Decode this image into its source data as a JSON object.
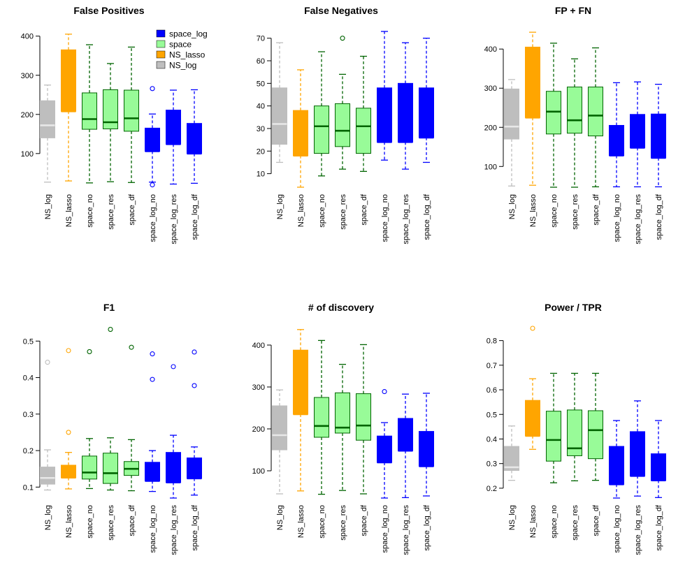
{
  "chart_data": [
    {
      "type": "boxplot",
      "title": "False Positives",
      "categories": [
        "NS_log",
        "NS_lasso",
        "space_no",
        "space_res",
        "space_df",
        "space_log_no",
        "space_log_res",
        "space_log_df"
      ],
      "yticks": [
        100,
        200,
        300,
        400
      ],
      "ylim": [
        14,
        412
      ],
      "boxes": [
        {
          "min": 27,
          "q1": 140,
          "median": 172,
          "q3": 235,
          "max": 275,
          "outliers": []
        },
        {
          "min": 30,
          "q1": 208,
          "median": 208,
          "q3": 365,
          "max": 405,
          "outliers": []
        },
        {
          "min": 25,
          "q1": 162,
          "median": 188,
          "q3": 255,
          "max": 378,
          "outliers": []
        },
        {
          "min": 28,
          "q1": 163,
          "median": 180,
          "q3": 263,
          "max": 330,
          "outliers": []
        },
        {
          "min": 26,
          "q1": 157,
          "median": 190,
          "q3": 262,
          "max": 372,
          "outliers": []
        },
        {
          "min": 27,
          "q1": 106,
          "median": 106,
          "q3": 165,
          "max": 201,
          "outliers": [
            266,
            20
          ]
        },
        {
          "min": 22,
          "q1": 124,
          "median": 124,
          "q3": 211,
          "max": 262,
          "outliers": []
        },
        {
          "min": 24,
          "q1": 100,
          "median": 100,
          "q3": 177,
          "max": 263,
          "outliers": []
        }
      ],
      "legend": {
        "position": "top-right",
        "entries": [
          {
            "label": "space_log",
            "color": "#0000FF"
          },
          {
            "label": "space",
            "color": "#98FB98"
          },
          {
            "label": "NS_lasso",
            "color": "#FFA500"
          },
          {
            "label": "NS_log",
            "color": "#BEBEBE"
          }
        ]
      }
    },
    {
      "type": "boxplot",
      "title": "False Negatives",
      "categories": [
        "NS_log",
        "NS_lasso",
        "space_no",
        "space_res",
        "space_df",
        "space_log_no",
        "space_log_res",
        "space_log_df"
      ],
      "yticks": [
        10,
        20,
        30,
        40,
        50,
        60,
        70
      ],
      "ylim": [
        4,
        73
      ],
      "boxes": [
        {
          "min": 15,
          "q1": 23,
          "median": 32,
          "q3": 48,
          "max": 68,
          "outliers": []
        },
        {
          "min": 4,
          "q1": 18,
          "median": 18,
          "q3": 38,
          "max": 56,
          "outliers": []
        },
        {
          "min": 9,
          "q1": 19,
          "median": 31,
          "q3": 40,
          "max": 64,
          "outliers": []
        },
        {
          "min": 12,
          "q1": 22,
          "median": 29,
          "q3": 41,
          "max": 54,
          "outliers": [
            70
          ]
        },
        {
          "min": 11,
          "q1": 19,
          "median": 31,
          "q3": 39,
          "max": 62,
          "outliers": []
        },
        {
          "min": 16,
          "q1": 24,
          "median": 24,
          "q3": 48,
          "max": 73,
          "outliers": []
        },
        {
          "min": 12,
          "q1": 24,
          "median": 24,
          "q3": 50,
          "max": 68,
          "outliers": []
        },
        {
          "min": 15,
          "q1": 26,
          "median": 26,
          "q3": 48,
          "max": 70,
          "outliers": []
        }
      ]
    },
    {
      "type": "boxplot",
      "title": "FP + FN",
      "categories": [
        "NS_log",
        "NS_lasso",
        "space_no",
        "space_res",
        "space_df",
        "space_log_no",
        "space_log_res",
        "space_log_df"
      ],
      "yticks": [
        100,
        200,
        300,
        400
      ],
      "ylim": [
        47,
        445
      ],
      "boxes": [
        {
          "min": 50,
          "q1": 170,
          "median": 202,
          "q3": 298,
          "max": 322,
          "outliers": []
        },
        {
          "min": 52,
          "q1": 225,
          "median": 225,
          "q3": 405,
          "max": 443,
          "outliers": []
        },
        {
          "min": 47,
          "q1": 183,
          "median": 240,
          "q3": 292,
          "max": 415,
          "outliers": []
        },
        {
          "min": 47,
          "q1": 185,
          "median": 218,
          "q3": 303,
          "max": 375,
          "outliers": []
        },
        {
          "min": 48,
          "q1": 178,
          "median": 230,
          "q3": 303,
          "max": 403,
          "outliers": []
        },
        {
          "min": 48,
          "q1": 128,
          "median": 128,
          "q3": 205,
          "max": 314,
          "outliers": []
        },
        {
          "min": 48,
          "q1": 148,
          "median": 148,
          "q3": 233,
          "max": 316,
          "outliers": []
        },
        {
          "min": 48,
          "q1": 122,
          "median": 122,
          "q3": 234,
          "max": 310,
          "outliers": []
        }
      ]
    },
    {
      "type": "boxplot",
      "title": "F1",
      "categories": [
        "NS_log",
        "NS_lasso",
        "space_no",
        "space_res",
        "space_df",
        "space_log_no",
        "space_log_res",
        "space_log_df"
      ],
      "yticks": [
        0.1,
        0.2,
        0.3,
        0.4,
        0.5
      ],
      "ylim": [
        0.07,
        0.535
      ],
      "boxes": [
        {
          "min": 0.092,
          "q1": 0.108,
          "median": 0.125,
          "q3": 0.155,
          "max": 0.202,
          "outliers": [
            0.442
          ]
        },
        {
          "min": 0.095,
          "q1": 0.126,
          "median": 0.126,
          "q3": 0.16,
          "max": 0.195,
          "outliers": [
            0.474,
            0.25
          ]
        },
        {
          "min": 0.096,
          "q1": 0.122,
          "median": 0.14,
          "q3": 0.185,
          "max": 0.233,
          "outliers": [
            0.471
          ]
        },
        {
          "min": 0.092,
          "q1": 0.11,
          "median": 0.138,
          "q3": 0.193,
          "max": 0.235,
          "outliers": [
            0.532
          ]
        },
        {
          "min": 0.09,
          "q1": 0.132,
          "median": 0.15,
          "q3": 0.17,
          "max": 0.23,
          "outliers": [
            0.483
          ]
        },
        {
          "min": 0.088,
          "q1": 0.117,
          "median": 0.117,
          "q3": 0.168,
          "max": 0.2,
          "outliers": [
            0.465,
            0.395
          ]
        },
        {
          "min": 0.07,
          "q1": 0.113,
          "median": 0.113,
          "q3": 0.195,
          "max": 0.242,
          "outliers": [
            0.43
          ]
        },
        {
          "min": 0.078,
          "q1": 0.124,
          "median": 0.124,
          "q3": 0.18,
          "max": 0.21,
          "outliers": [
            0.47,
            0.378
          ]
        }
      ]
    },
    {
      "type": "boxplot",
      "title": "# of discovery",
      "categories": [
        "NS_log",
        "NS_lasso",
        "space_no",
        "space_res",
        "space_df",
        "space_log_no",
        "space_log_res",
        "space_log_df"
      ],
      "yticks": [
        100,
        200,
        300,
        400
      ],
      "ylim": [
        35,
        440
      ],
      "boxes": [
        {
          "min": 45,
          "q1": 150,
          "median": 185,
          "q3": 255,
          "max": 293,
          "outliers": []
        },
        {
          "min": 52,
          "q1": 235,
          "median": 235,
          "q3": 388,
          "max": 437,
          "outliers": []
        },
        {
          "min": 44,
          "q1": 180,
          "median": 207,
          "q3": 275,
          "max": 411,
          "outliers": []
        },
        {
          "min": 53,
          "q1": 190,
          "median": 203,
          "q3": 286,
          "max": 354,
          "outliers": []
        },
        {
          "min": 45,
          "q1": 173,
          "median": 208,
          "q3": 284,
          "max": 401,
          "outliers": []
        },
        {
          "min": 35,
          "q1": 120,
          "median": 120,
          "q3": 183,
          "max": 215,
          "outliers": [
            289
          ]
        },
        {
          "min": 36,
          "q1": 148,
          "median": 148,
          "q3": 225,
          "max": 283,
          "outliers": []
        },
        {
          "min": 40,
          "q1": 111,
          "median": 111,
          "q3": 194,
          "max": 285,
          "outliers": []
        }
      ]
    },
    {
      "type": "boxplot",
      "title": "Power / TPR",
      "categories": [
        "NS_log",
        "NS_lasso",
        "space_no",
        "space_res",
        "space_df",
        "space_log_no",
        "space_log_res",
        "space_log_df"
      ],
      "yticks": [
        0.2,
        0.3,
        0.4,
        0.5,
        0.6,
        0.7,
        0.8
      ],
      "ylim": [
        0.16,
        0.85
      ],
      "boxes": [
        {
          "min": 0.232,
          "q1": 0.272,
          "median": 0.285,
          "q3": 0.37,
          "max": 0.453,
          "outliers": []
        },
        {
          "min": 0.358,
          "q1": 0.413,
          "median": 0.413,
          "q3": 0.557,
          "max": 0.645,
          "outliers": [
            0.85
          ]
        },
        {
          "min": 0.222,
          "q1": 0.31,
          "median": 0.396,
          "q3": 0.513,
          "max": 0.667,
          "outliers": []
        },
        {
          "min": 0.23,
          "q1": 0.332,
          "median": 0.362,
          "q3": 0.518,
          "max": 0.667,
          "outliers": []
        },
        {
          "min": 0.232,
          "q1": 0.32,
          "median": 0.436,
          "q3": 0.515,
          "max": 0.667,
          "outliers": []
        },
        {
          "min": 0.16,
          "q1": 0.216,
          "median": 0.216,
          "q3": 0.37,
          "max": 0.475,
          "outliers": []
        },
        {
          "min": 0.168,
          "q1": 0.25,
          "median": 0.25,
          "q3": 0.43,
          "max": 0.555,
          "outliers": []
        },
        {
          "min": 0.162,
          "q1": 0.232,
          "median": 0.232,
          "q3": 0.34,
          "max": 0.475,
          "outliers": []
        }
      ]
    }
  ],
  "colors": {
    "fill": [
      "#BEBEBE",
      "#FFA500",
      "#98FB98",
      "#98FB98",
      "#98FB98",
      "#0000FF",
      "#0000FF",
      "#0000FF"
    ],
    "stroke": [
      "#BEBEBE",
      "#FFA500",
      "#006400",
      "#006400",
      "#006400",
      "#0000FF",
      "#0000FF",
      "#0000FF"
    ],
    "median": [
      "#E8E8E8",
      "#FFA500",
      "#006400",
      "#006400",
      "#006400",
      "#0000FF",
      "#0000FF",
      "#0000FF"
    ]
  }
}
